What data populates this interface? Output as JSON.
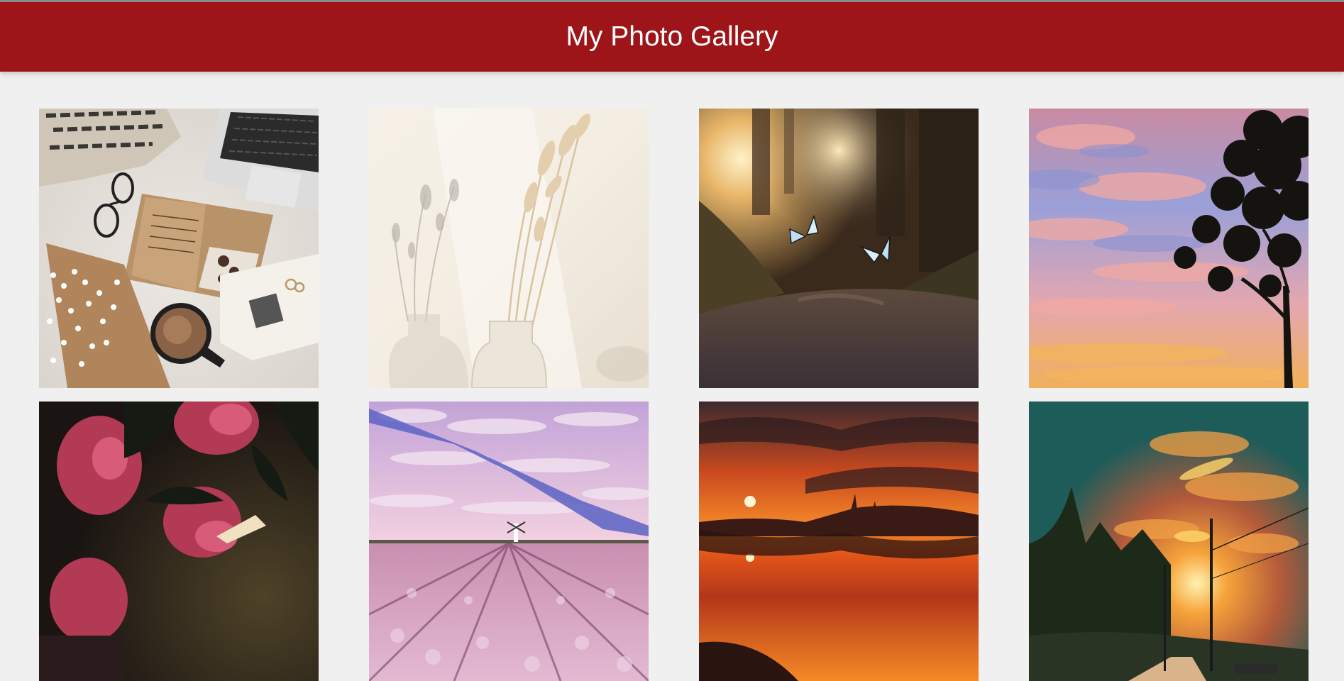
{
  "header": {
    "title": "My Photo Gallery",
    "background_color": "#9e1519"
  },
  "gallery": {
    "photos": [
      {
        "subject": "flatlay-laptop-notebook-coffee"
      },
      {
        "subject": "dried-grass-in-vase-shadow"
      },
      {
        "subject": "butterflies-forest-path"
      },
      {
        "subject": "tree-silhouette-pink-sky"
      },
      {
        "subject": "dark-pink-roses"
      },
      {
        "subject": "tulip-field-windmill"
      },
      {
        "subject": "orange-sunset-reflection"
      },
      {
        "subject": "sunset-country-road-teal-sky"
      }
    ]
  }
}
